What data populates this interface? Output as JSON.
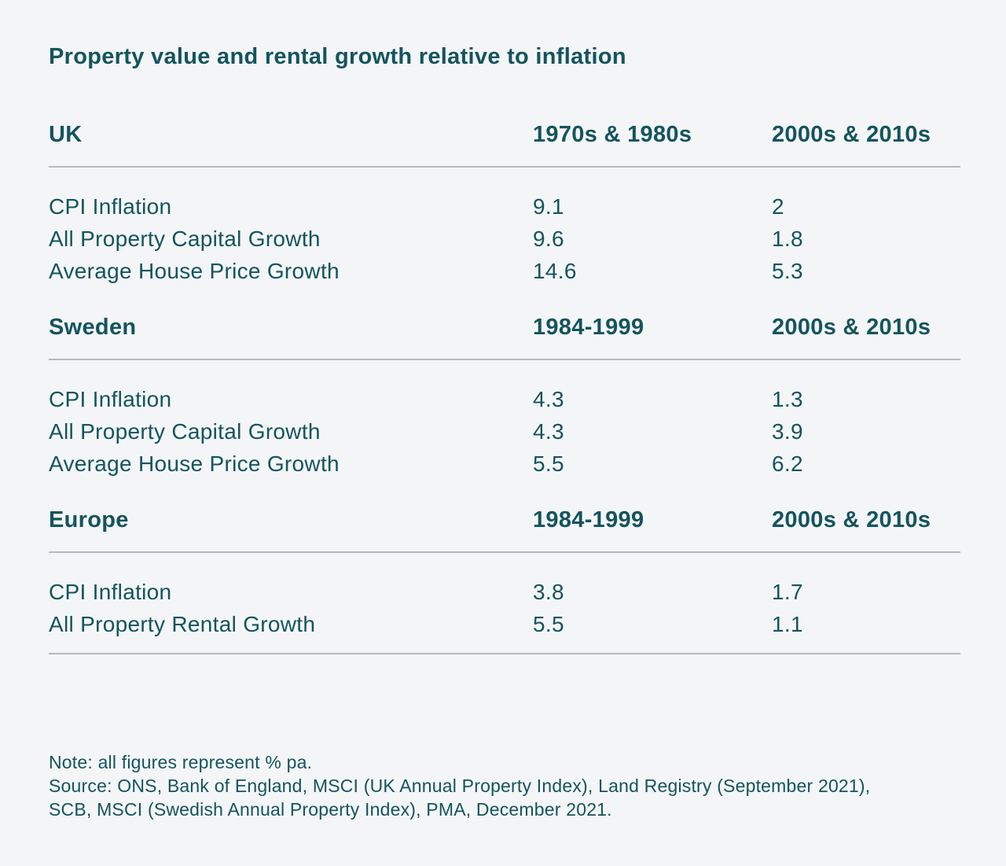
{
  "colors": {
    "text": "#14545E",
    "background": "#F4F5F6",
    "divider": "#B6B9BD"
  },
  "chart_data": {
    "type": "table",
    "title": "Property value and rental growth relative to inflation",
    "unit": "% pa",
    "sections": [
      {
        "region": "UK",
        "periods": [
          "1970s & 1980s",
          "2000s & 2010s"
        ],
        "rows": [
          {
            "metric": "CPI Inflation",
            "values": [
              9.1,
              2
            ]
          },
          {
            "metric": "All Property Capital Growth",
            "values": [
              9.6,
              1.8
            ]
          },
          {
            "metric": "Average House Price Growth",
            "values": [
              14.6,
              5.3
            ]
          }
        ]
      },
      {
        "region": "Sweden",
        "periods": [
          "1984-1999",
          "2000s & 2010s"
        ],
        "rows": [
          {
            "metric": "CPI Inflation",
            "values": [
              4.3,
              1.3
            ]
          },
          {
            "metric": "All Property Capital Growth",
            "values": [
              4.3,
              3.9
            ]
          },
          {
            "metric": "Average House Price Growth",
            "values": [
              5.5,
              6.2
            ]
          }
        ]
      },
      {
        "region": "Europe",
        "periods": [
          "1984-1999",
          "2000s & 2010s"
        ],
        "rows": [
          {
            "metric": "CPI Inflation",
            "values": [
              3.8,
              1.7
            ]
          },
          {
            "metric": "All Property Rental Growth",
            "values": [
              5.5,
              1.1
            ]
          }
        ]
      }
    ],
    "note": "Note: all figures represent % pa.",
    "source": "Source: ONS, Bank of England, MSCI (UK Annual Property Index), Land Registry (September 2021), SCB, MSCI (Swedish Annual Property Index), PMA, December 2021."
  }
}
